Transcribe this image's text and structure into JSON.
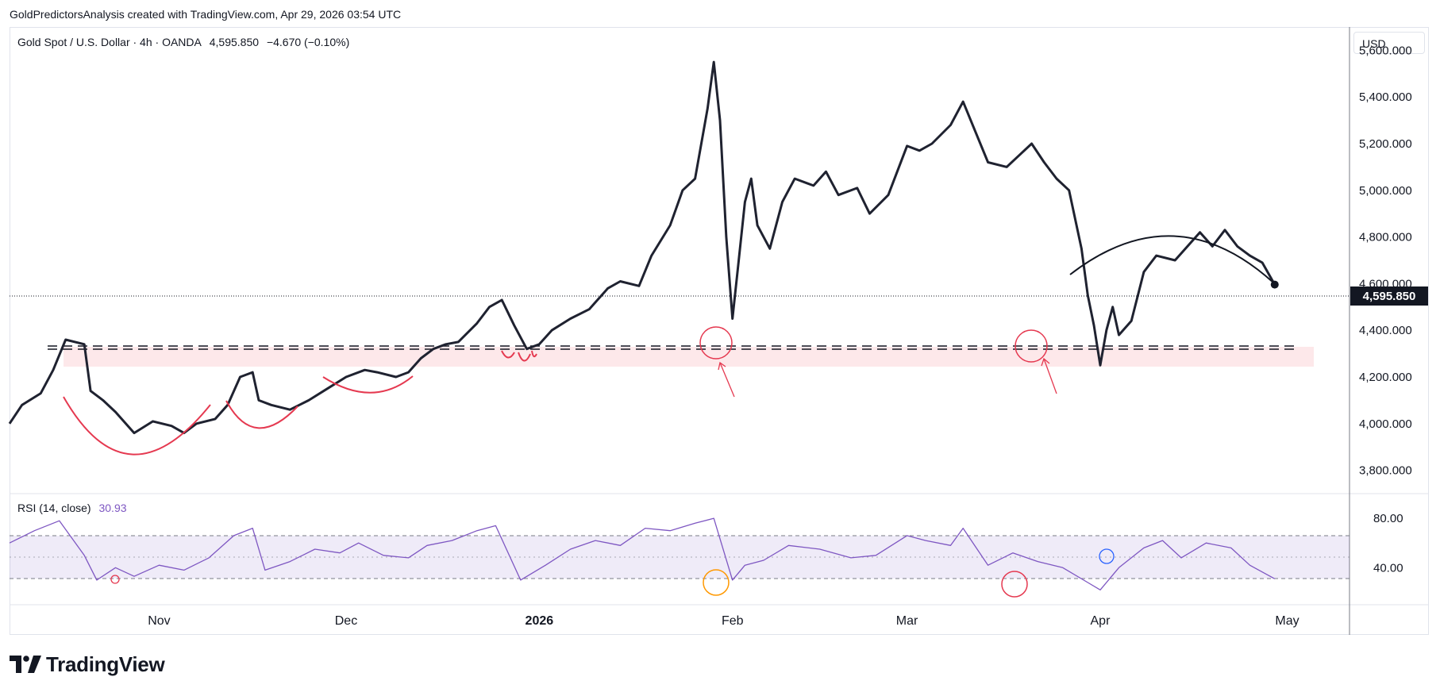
{
  "header": {
    "text": "GoldPredictorsAnalysis created with TradingView.com, Apr 29, 2026 03:54 UTC"
  },
  "symbol": {
    "name": "Gold Spot / U.S. Dollar · 4h · OANDA",
    "last": "4,595.850",
    "change": "−4.670 (−0.10%)"
  },
  "currency": "USD",
  "price_label": "4,595.850",
  "rsi": {
    "label": "RSI (14, close)",
    "value": "30.93"
  },
  "logo_text": "TradingView",
  "colors": {
    "price": "#1f2230",
    "rsi": "#7e57c2",
    "annotation_red": "#e53950",
    "annotation_orange": "#ff9800",
    "annotation_blue": "#2962ff",
    "zone": "#fde8ea"
  },
  "chart_data": [
    {
      "type": "line",
      "ylim": [
        3700,
        5700
      ],
      "y_ticks": [
        "5,600.000",
        "5,400.000",
        "5,200.000",
        "5,000.000",
        "4,800.000",
        "4,600.000",
        "4,400.000",
        "4,200.000",
        "4,000.000",
        "3,800.000"
      ],
      "y_tick_values": [
        5600,
        5400,
        5200,
        5000,
        4800,
        4600,
        4400,
        4200,
        4000,
        3800
      ],
      "x_ticks": [
        "Nov",
        "Dec",
        "2026",
        "Feb",
        "Mar",
        "Apr",
        "May"
      ],
      "x_tick_dates": [
        "2025-11-01",
        "2025-12-01",
        "2026-01-01",
        "2026-02-01",
        "2026-03-01",
        "2026-04-01",
        "2026-05-01"
      ],
      "xlim": [
        "2025-10-08",
        "2026-05-11"
      ],
      "series": [
        {
          "points": [
            [
              "2025-10-08",
              4000
            ],
            [
              "2025-10-10",
              4080
            ],
            [
              "2025-10-13",
              4130
            ],
            [
              "2025-10-15",
              4230
            ],
            [
              "2025-10-17",
              4360
            ],
            [
              "2025-10-20",
              4340
            ],
            [
              "2025-10-21",
              4140
            ],
            [
              "2025-10-23",
              4100
            ],
            [
              "2025-10-25",
              4050
            ],
            [
              "2025-10-28",
              3960
            ],
            [
              "2025-10-31",
              4010
            ],
            [
              "2025-11-03",
              3990
            ],
            [
              "2025-11-05",
              3960
            ],
            [
              "2025-11-07",
              4000
            ],
            [
              "2025-11-10",
              4020
            ],
            [
              "2025-11-12",
              4080
            ],
            [
              "2025-11-14",
              4200
            ],
            [
              "2025-11-16",
              4220
            ],
            [
              "2025-11-17",
              4100
            ],
            [
              "2025-11-19",
              4080
            ],
            [
              "2025-11-22",
              4060
            ],
            [
              "2025-11-25",
              4100
            ],
            [
              "2025-11-28",
              4150
            ],
            [
              "2025-12-01",
              4200
            ],
            [
              "2025-12-04",
              4230
            ],
            [
              "2025-12-06",
              4220
            ],
            [
              "2025-12-09",
              4200
            ],
            [
              "2025-12-11",
              4220
            ],
            [
              "2025-12-13",
              4280
            ],
            [
              "2025-12-15",
              4320
            ],
            [
              "2025-12-17",
              4340
            ],
            [
              "2025-12-19",
              4350
            ],
            [
              "2025-12-22",
              4430
            ],
            [
              "2025-12-24",
              4500
            ],
            [
              "2025-12-26",
              4530
            ],
            [
              "2025-12-28",
              4420
            ],
            [
              "2025-12-30",
              4320
            ],
            [
              "2026-01-01",
              4340
            ],
            [
              "2026-01-03",
              4400
            ],
            [
              "2026-01-06",
              4450
            ],
            [
              "2026-01-09",
              4490
            ],
            [
              "2026-01-12",
              4580
            ],
            [
              "2026-01-14",
              4610
            ],
            [
              "2026-01-17",
              4590
            ],
            [
              "2026-01-19",
              4720
            ],
            [
              "2026-01-22",
              4850
            ],
            [
              "2026-01-24",
              5000
            ],
            [
              "2026-01-26",
              5050
            ],
            [
              "2026-01-28",
              5350
            ],
            [
              "2026-01-29",
              5550
            ],
            [
              "2026-01-30",
              5300
            ],
            [
              "2026-01-31",
              4800
            ],
            [
              "2026-02-01",
              4450
            ],
            [
              "2026-02-02",
              4700
            ],
            [
              "2026-02-03",
              4950
            ],
            [
              "2026-02-04",
              5050
            ],
            [
              "2026-02-05",
              4850
            ],
            [
              "2026-02-07",
              4750
            ],
            [
              "2026-02-09",
              4950
            ],
            [
              "2026-02-11",
              5050
            ],
            [
              "2026-02-14",
              5020
            ],
            [
              "2026-02-16",
              5080
            ],
            [
              "2026-02-18",
              4980
            ],
            [
              "2026-02-21",
              5010
            ],
            [
              "2026-02-23",
              4900
            ],
            [
              "2026-02-26",
              4980
            ],
            [
              "2026-03-01",
              5190
            ],
            [
              "2026-03-03",
              5170
            ],
            [
              "2026-03-05",
              5200
            ],
            [
              "2026-03-08",
              5280
            ],
            [
              "2026-03-10",
              5380
            ],
            [
              "2026-03-12",
              5250
            ],
            [
              "2026-03-14",
              5120
            ],
            [
              "2026-03-17",
              5100
            ],
            [
              "2026-03-19",
              5150
            ],
            [
              "2026-03-21",
              5200
            ],
            [
              "2026-03-23",
              5120
            ],
            [
              "2026-03-25",
              5050
            ],
            [
              "2026-03-27",
              5000
            ],
            [
              "2026-03-29",
              4750
            ],
            [
              "2026-03-30",
              4550
            ],
            [
              "2026-03-31",
              4420
            ],
            [
              "2026-04-01",
              4250
            ],
            [
              "2026-04-02",
              4400
            ],
            [
              "2026-04-03",
              4500
            ],
            [
              "2026-04-04",
              4380
            ],
            [
              "2026-04-06",
              4440
            ],
            [
              "2026-04-08",
              4650
            ],
            [
              "2026-04-10",
              4720
            ],
            [
              "2026-04-13",
              4700
            ],
            [
              "2026-04-15",
              4760
            ],
            [
              "2026-04-17",
              4820
            ],
            [
              "2026-04-19",
              4760
            ],
            [
              "2026-04-21",
              4830
            ],
            [
              "2026-04-23",
              4760
            ],
            [
              "2026-04-25",
              4720
            ],
            [
              "2026-04-27",
              4690
            ],
            [
              "2026-04-29",
              4596
            ]
          ]
        }
      ]
    },
    {
      "type": "line",
      "ylim": [
        10,
        100
      ],
      "y_ticks": [
        "80.00",
        "40.00"
      ],
      "y_tick_values": [
        80,
        40
      ],
      "band": [
        30,
        70
      ],
      "midline": 50,
      "series": [
        {
          "name": "RSI (14, close)",
          "points": [
            [
              "2025-10-08",
              60
            ],
            [
              "2025-10-12",
              70
            ],
            [
              "2025-10-16",
              78
            ],
            [
              "2025-10-20",
              50
            ],
            [
              "2025-10-22",
              30
            ],
            [
              "2025-10-25",
              40
            ],
            [
              "2025-10-28",
              33
            ],
            [
              "2025-11-01",
              42
            ],
            [
              "2025-11-05",
              38
            ],
            [
              "2025-11-09",
              48
            ],
            [
              "2025-11-13",
              66
            ],
            [
              "2025-11-16",
              72
            ],
            [
              "2025-11-18",
              38
            ],
            [
              "2025-11-22",
              45
            ],
            [
              "2025-11-26",
              55
            ],
            [
              "2025-11-30",
              52
            ],
            [
              "2025-12-03",
              60
            ],
            [
              "2025-12-07",
              50
            ],
            [
              "2025-12-11",
              48
            ],
            [
              "2025-12-14",
              58
            ],
            [
              "2025-12-18",
              62
            ],
            [
              "2025-12-22",
              70
            ],
            [
              "2025-12-25",
              74
            ],
            [
              "2025-12-29",
              30
            ],
            [
              "2026-01-02",
              42
            ],
            [
              "2026-01-06",
              55
            ],
            [
              "2026-01-10",
              62
            ],
            [
              "2026-01-14",
              58
            ],
            [
              "2026-01-18",
              72
            ],
            [
              "2026-01-22",
              70
            ],
            [
              "2026-01-26",
              76
            ],
            [
              "2026-01-29",
              80
            ],
            [
              "2026-02-01",
              30
            ],
            [
              "2026-02-03",
              42
            ],
            [
              "2026-02-06",
              46
            ],
            [
              "2026-02-10",
              58
            ],
            [
              "2026-02-15",
              55
            ],
            [
              "2026-02-20",
              48
            ],
            [
              "2026-02-24",
              50
            ],
            [
              "2026-03-01",
              66
            ],
            [
              "2026-03-04",
              62
            ],
            [
              "2026-03-08",
              58
            ],
            [
              "2026-03-10",
              72
            ],
            [
              "2026-03-14",
              42
            ],
            [
              "2026-03-18",
              52
            ],
            [
              "2026-03-22",
              45
            ],
            [
              "2026-03-26",
              40
            ],
            [
              "2026-03-30",
              28
            ],
            [
              "2026-04-01",
              22
            ],
            [
              "2026-04-04",
              40
            ],
            [
              "2026-04-08",
              56
            ],
            [
              "2026-04-11",
              62
            ],
            [
              "2026-04-14",
              48
            ],
            [
              "2026-04-18",
              60
            ],
            [
              "2026-04-22",
              56
            ],
            [
              "2026-04-25",
              42
            ],
            [
              "2026-04-29",
              31
            ]
          ]
        }
      ]
    }
  ]
}
